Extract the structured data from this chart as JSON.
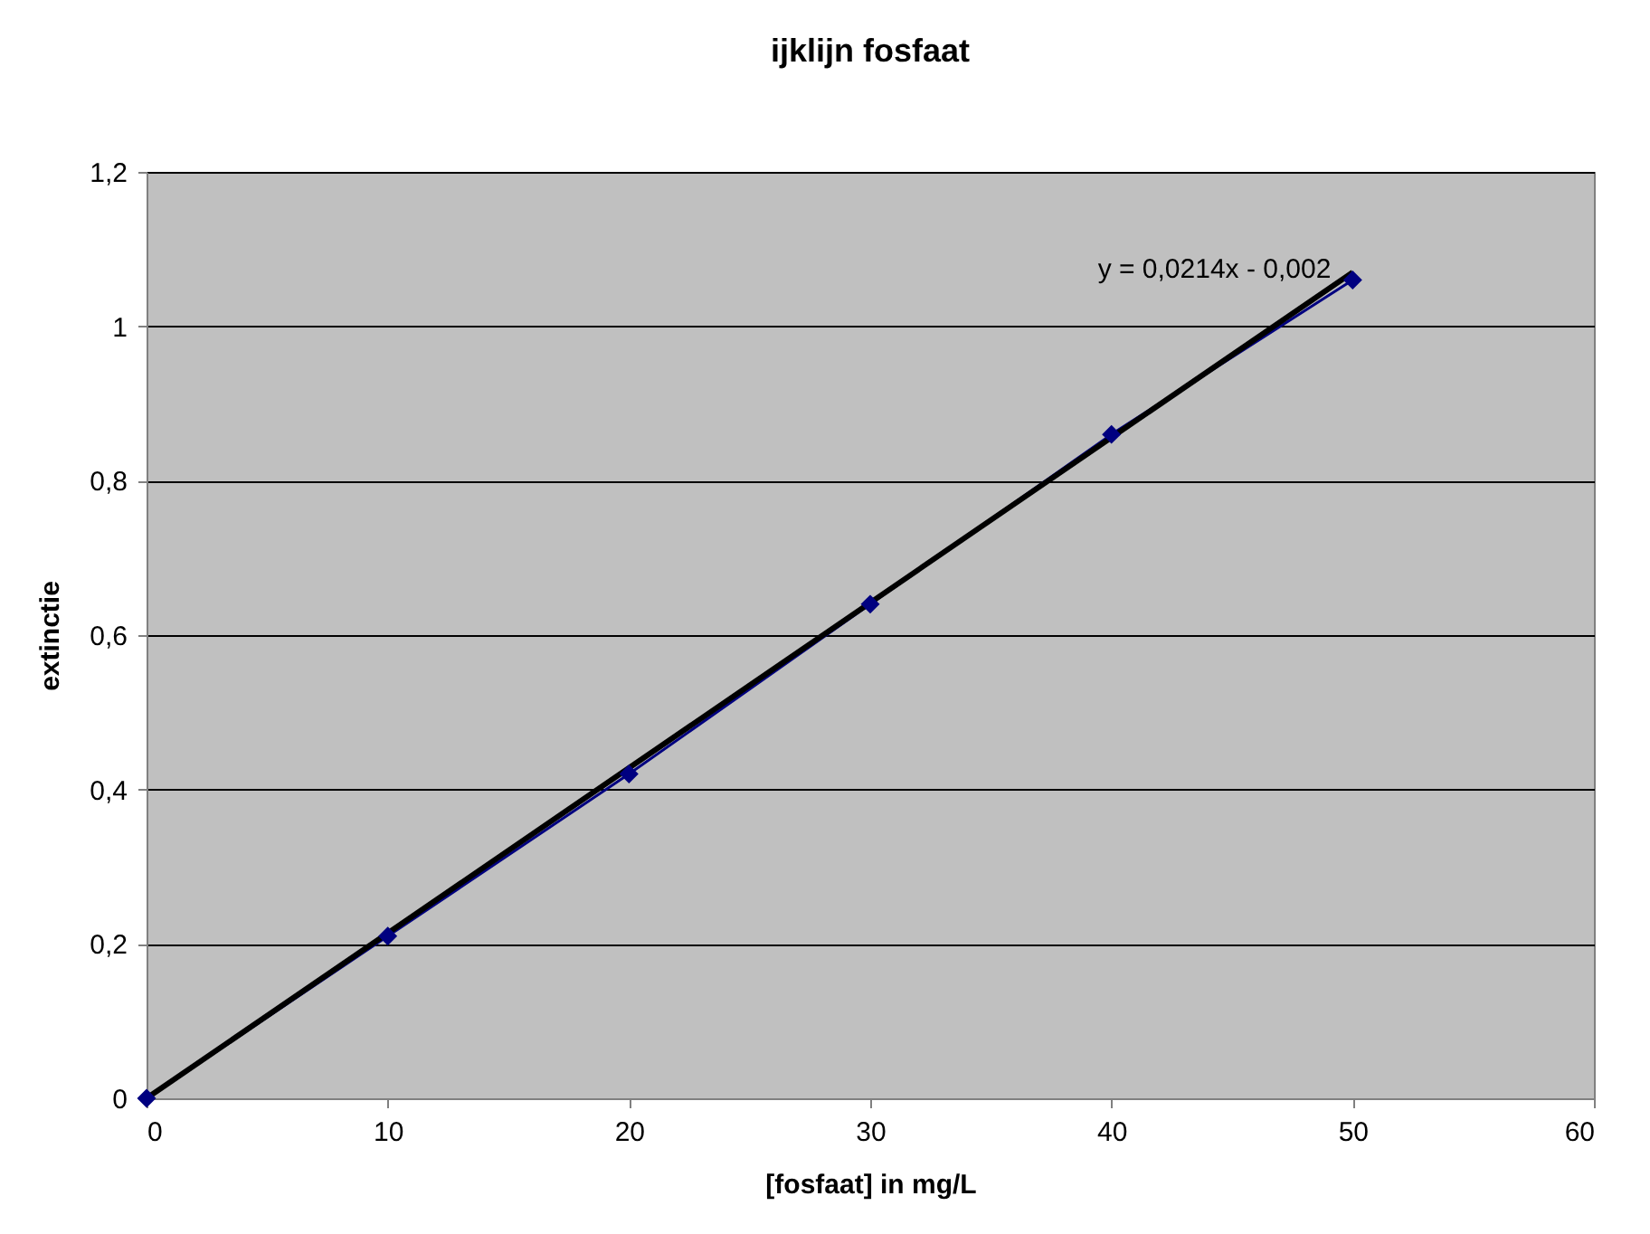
{
  "chart_data": {
    "type": "line",
    "title": "ijklijn fosfaat",
    "xlabel": "[fosfaat] in mg/L",
    "ylabel": "extinctie",
    "series": [
      {
        "color": "#000080",
        "marker": "diamond",
        "x": [
          0,
          10,
          20,
          30,
          40,
          50
        ],
        "values": [
          0,
          0.21,
          0.42,
          0.64,
          0.86,
          1.06
        ]
      },
      {
        "color": "#000000",
        "marker": "none",
        "x": [
          0,
          50
        ],
        "values": [
          0,
          1.07
        ]
      }
    ],
    "annotations": [
      {
        "text": "y = 0,0214x - 0,002",
        "x": 50,
        "y": 1.07
      }
    ],
    "xlim": [
      0,
      60
    ],
    "xticks": [
      0,
      10,
      20,
      30,
      40,
      50,
      60
    ],
    "ylim": [
      0,
      1.2
    ],
    "yticks": [
      0,
      {
        "value": 0.2,
        "label": "0,2"
      },
      {
        "value": 0.4,
        "label": "0,4"
      },
      {
        "value": 0.6,
        "label": "0,6"
      },
      {
        "value": 0.8,
        "label": "0,8"
      },
      1,
      {
        "value": 1.2,
        "label": "1,2"
      }
    ],
    "grid": "y",
    "legend": false
  }
}
